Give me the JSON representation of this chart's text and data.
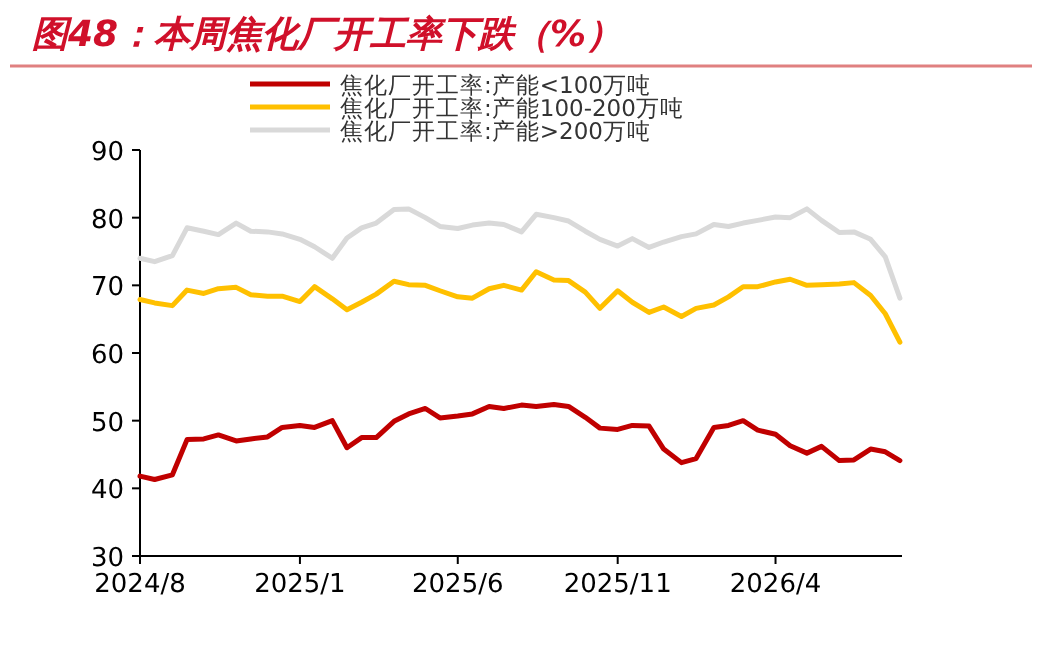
{
  "chart_data": {
    "type": "line",
    "title": "图48：本周焦化厂开工率下跌（%）",
    "x": [
      "2024-08-01",
      "2024-08-15",
      "2024-09-01",
      "2024-09-15",
      "2024-10-01",
      "2024-10-15",
      "2024-11-01",
      "2024-11-15",
      "2024-12-01",
      "2024-12-15",
      "2025-01-01",
      "2025-01-15",
      "2025-02-01",
      "2025-02-15",
      "2025-03-01",
      "2025-03-15",
      "2025-04-01",
      "2025-04-15",
      "2025-05-01",
      "2025-05-15",
      "2025-06-01",
      "2025-06-15",
      "2025-07-01",
      "2025-07-15",
      "2025-08-01",
      "2025-08-15",
      "2025-09-01",
      "2025-09-15",
      "2025-10-01",
      "2025-10-15",
      "2025-11-01",
      "2025-11-15",
      "2025-12-01",
      "2025-12-15",
      "2026-01-01",
      "2026-01-15",
      "2026-02-01",
      "2026-02-15",
      "2026-03-01",
      "2026-03-15",
      "2026-04-01",
      "2026-04-15",
      "2026-05-01",
      "2026-05-15",
      "2026-06-01",
      "2026-06-15",
      "2026-07-01",
      "2026-07-15",
      "2026-07-29"
    ],
    "xlim": [
      "2024-08-01",
      "2026-07-31"
    ],
    "xticks": [
      {
        "value": "2024-08-01",
        "label": "2024/8"
      },
      {
        "value": "2025-01-01",
        "label": "2025/1"
      },
      {
        "value": "2025-06-01",
        "label": "2025/6"
      },
      {
        "value": "2025-11-01",
        "label": "2025/11"
      },
      {
        "value": "2026-04-01",
        "label": "2026/4"
      }
    ],
    "ylim": [
      30,
      90
    ],
    "yticks": [
      30,
      40,
      50,
      60,
      70,
      80,
      90
    ],
    "legend": "top",
    "series": [
      {
        "name": "焦化厂开工率:产能<100万吨",
        "color": "#c00000",
        "values": [
          41.8,
          41.3,
          42.0,
          47.2,
          47.3,
          47.9,
          47.0,
          47.3,
          47.6,
          49.0,
          49.3,
          49.0,
          50.0,
          46.0,
          47.5,
          47.5,
          49.9,
          51.0,
          51.8,
          50.4,
          50.7,
          51.0,
          52.1,
          51.8,
          52.3,
          52.1,
          52.4,
          52.1,
          50.5,
          48.9,
          48.7,
          49.3,
          49.2,
          45.8,
          43.8,
          44.4,
          49.0,
          49.3,
          50.0,
          48.6,
          48.0,
          46.3,
          45.2,
          46.2,
          44.1,
          44.2,
          45.8,
          45.4,
          44.1
        ]
      },
      {
        "name": "焦化厂开工率:产能100-200万吨",
        "color": "#ffc000",
        "values": [
          67.9,
          67.4,
          67.0,
          69.3,
          68.8,
          69.5,
          69.7,
          68.6,
          68.4,
          68.4,
          67.6,
          69.8,
          68.0,
          66.4,
          67.5,
          68.7,
          70.6,
          70.1,
          70.0,
          69.2,
          68.3,
          68.1,
          69.5,
          70.0,
          69.3,
          72.0,
          70.8,
          70.7,
          69.0,
          66.6,
          69.2,
          67.5,
          66.0,
          66.8,
          65.4,
          66.6,
          67.1,
          68.3,
          69.8,
          69.8,
          70.5,
          70.9,
          70.0,
          70.1,
          70.2,
          70.4,
          68.5,
          65.8,
          61.6
        ]
      },
      {
        "name": "焦化厂开工率:产能>200万吨",
        "color": "#d9d9d9",
        "values": [
          74.0,
          73.5,
          74.4,
          78.5,
          78.0,
          77.5,
          79.2,
          78.0,
          77.9,
          77.6,
          76.8,
          75.7,
          74.0,
          77.0,
          78.5,
          79.2,
          81.2,
          81.3,
          80.0,
          78.7,
          78.4,
          78.9,
          79.2,
          79.0,
          77.9,
          80.5,
          80.0,
          79.5,
          78.0,
          76.8,
          75.8,
          76.9,
          75.6,
          76.4,
          77.2,
          77.6,
          79.0,
          78.7,
          79.2,
          79.6,
          80.1,
          80.0,
          81.3,
          79.6,
          77.8,
          77.9,
          76.8,
          74.2,
          68.1
        ]
      }
    ]
  }
}
